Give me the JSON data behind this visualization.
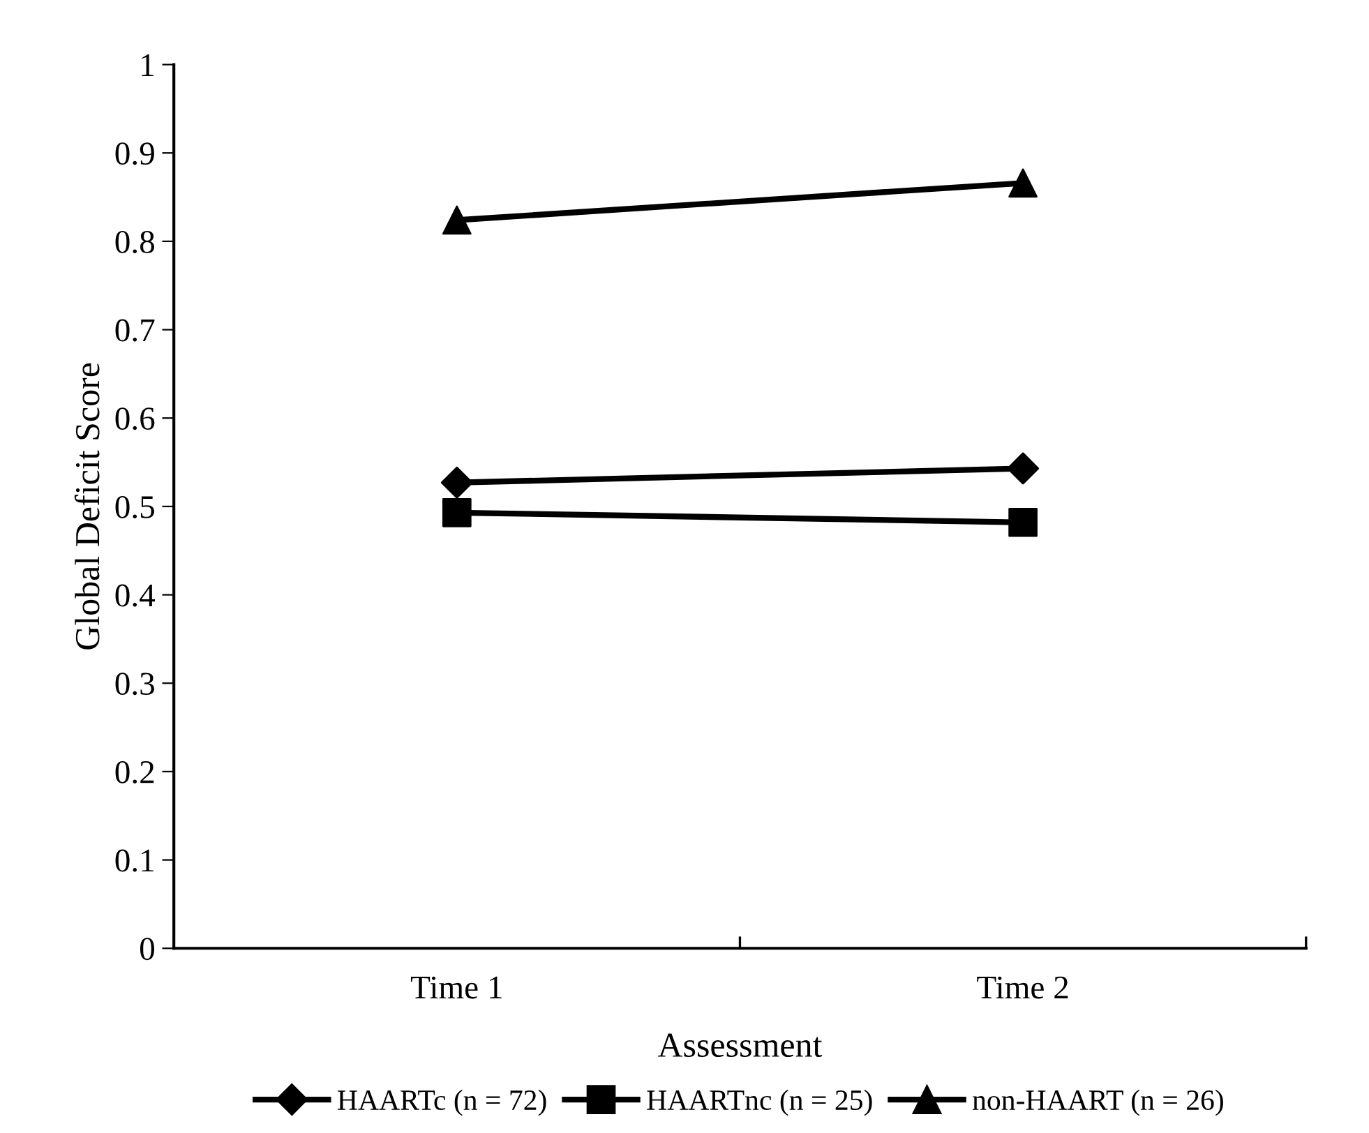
{
  "chart_data": {
    "type": "line",
    "xlabel": "Assessment",
    "ylabel": "Global Deficit Score",
    "categories": [
      "Time 1",
      "Time 2"
    ],
    "series": [
      {
        "name": "HAARTc (n = 72)",
        "color": "#000000",
        "values": [
          0.527,
          0.543
        ],
        "marker": "diamond"
      },
      {
        "name": "HAARTnc (n = 25)",
        "color": "#000000",
        "values": [
          0.493,
          0.482
        ],
        "marker": "square"
      },
      {
        "name": "non-HAART (n = 26)",
        "color": "#000000",
        "values": [
          0.824,
          0.866
        ],
        "marker": "triangle"
      }
    ],
    "ylim": [
      0,
      1
    ],
    "yticks": [
      0,
      0.1,
      0.2,
      0.3,
      0.4,
      0.5,
      0.6,
      0.7,
      0.8,
      0.9,
      1
    ],
    "grid": false,
    "legend": "bottom",
    "line_style": "solid"
  }
}
